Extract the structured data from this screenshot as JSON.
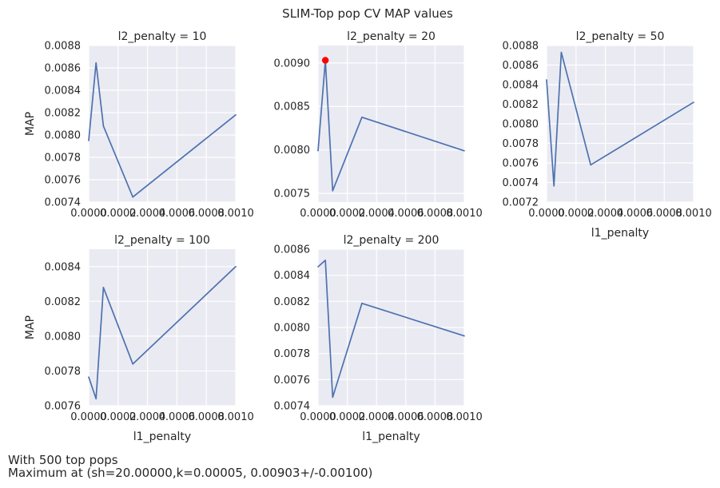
{
  "figure": {
    "title": "SLIM-Top pop CV MAP values",
    "footer_lines": [
      "With 500 top pops",
      "Maximum at (sh=20.00000,k=0.00005, 0.00903+/-0.00100)"
    ]
  },
  "style": {
    "panel_bg": "#eaeaf2",
    "grid": "#ffffff",
    "line": "#4c72b0",
    "highlight": "#ff0000",
    "text": "#262626"
  },
  "chart_data": [
    {
      "type": "line",
      "title": "l2_penalty = 10",
      "xlabel": "",
      "ylabel": "MAP",
      "xlim": [
        0,
        0.001
      ],
      "ylim": [
        0.0074,
        0.0088
      ],
      "xticks": [
        0.0,
        0.0002,
        0.0004,
        0.0006,
        0.0008,
        0.001
      ],
      "xtick_labels": [
        "0.0000",
        "0.0002",
        "0.0004",
        "0.0006",
        "0.0008",
        "0.0010"
      ],
      "yticks": [
        0.0074,
        0.0076,
        0.0078,
        0.008,
        0.0082,
        0.0084,
        0.0086,
        0.0088
      ],
      "ytick_labels": [
        "0.0074",
        "0.0076",
        "0.0078",
        "0.0080",
        "0.0082",
        "0.0084",
        "0.0086",
        "0.0088"
      ],
      "x": [
        0.0,
        5e-05,
        0.0001,
        0.0003,
        0.001
      ],
      "y": [
        0.00795,
        0.008645,
        0.00808,
        0.007445,
        0.00818
      ]
    },
    {
      "type": "line",
      "title": "l2_penalty = 20",
      "xlabel": "",
      "ylabel": "",
      "xlim": [
        0,
        0.001
      ],
      "ylim": [
        0.0074,
        0.0092
      ],
      "xticks": [
        0.0,
        0.0002,
        0.0004,
        0.0006,
        0.0008,
        0.001
      ],
      "xtick_labels": [
        "0.0000",
        "0.0002",
        "0.0004",
        "0.0006",
        "0.0008",
        "0.0010"
      ],
      "yticks": [
        0.0075,
        0.008,
        0.0085,
        0.009
      ],
      "ytick_labels": [
        "0.0075",
        "0.0080",
        "0.0085",
        "0.0090"
      ],
      "x": [
        0.0,
        5e-05,
        0.0001,
        0.0003,
        0.001
      ],
      "y": [
        0.00799,
        0.00903,
        0.00753,
        0.008375,
        0.00799
      ],
      "highlight": {
        "x": 5e-05,
        "y": 0.00903
      }
    },
    {
      "type": "line",
      "title": "l2_penalty = 50",
      "xlabel": "l1_penalty",
      "ylabel": "",
      "xlim": [
        0,
        0.001
      ],
      "ylim": [
        0.0072,
        0.0088
      ],
      "xticks": [
        0.0,
        0.0002,
        0.0004,
        0.0006,
        0.0008,
        0.001
      ],
      "xtick_labels": [
        "0.0000",
        "0.0002",
        "0.0004",
        "0.0006",
        "0.0008",
        "0.0010"
      ],
      "yticks": [
        0.0072,
        0.0074,
        0.0076,
        0.0078,
        0.008,
        0.0082,
        0.0084,
        0.0086,
        0.0088
      ],
      "ytick_labels": [
        "0.0072",
        "0.0074",
        "0.0076",
        "0.0078",
        "0.0080",
        "0.0082",
        "0.0084",
        "0.0086",
        "0.0088"
      ],
      "x": [
        0.0,
        5e-05,
        0.0001,
        0.0003,
        0.001
      ],
      "y": [
        0.00845,
        0.007365,
        0.00873,
        0.00758,
        0.00822
      ]
    },
    {
      "type": "line",
      "title": "l2_penalty = 100",
      "xlabel": "l1_penalty",
      "ylabel": "MAP",
      "xlim": [
        0,
        0.001
      ],
      "ylim": [
        0.0076,
        0.0085
      ],
      "xticks": [
        0.0,
        0.0002,
        0.0004,
        0.0006,
        0.0008,
        0.001
      ],
      "xtick_labels": [
        "0.0000",
        "0.0002",
        "0.0004",
        "0.0006",
        "0.0008",
        "0.0010"
      ],
      "yticks": [
        0.0076,
        0.0078,
        0.008,
        0.0082,
        0.0084
      ],
      "ytick_labels": [
        "0.0076",
        "0.0078",
        "0.0080",
        "0.0082",
        "0.0084"
      ],
      "x": [
        0.0,
        5e-05,
        0.0001,
        0.0003,
        0.001
      ],
      "y": [
        0.007765,
        0.00764,
        0.00828,
        0.00784,
        0.0084
      ]
    },
    {
      "type": "line",
      "title": "l2_penalty = 200",
      "xlabel": "l1_penalty",
      "ylabel": "",
      "xlim": [
        0,
        0.001
      ],
      "ylim": [
        0.0074,
        0.0086
      ],
      "xticks": [
        0.0,
        0.0002,
        0.0004,
        0.0006,
        0.0008,
        0.001
      ],
      "xtick_labels": [
        "0.0000",
        "0.0002",
        "0.0004",
        "0.0006",
        "0.0008",
        "0.0010"
      ],
      "yticks": [
        0.0074,
        0.0076,
        0.0078,
        0.008,
        0.0082,
        0.0084,
        0.0086
      ],
      "ytick_labels": [
        "0.0074",
        "0.0076",
        "0.0078",
        "0.0080",
        "0.0082",
        "0.0084",
        "0.0086"
      ],
      "x": [
        0.0,
        5e-05,
        0.0001,
        0.0003,
        0.001
      ],
      "y": [
        0.008465,
        0.008515,
        0.007465,
        0.008185,
        0.007935
      ]
    }
  ]
}
